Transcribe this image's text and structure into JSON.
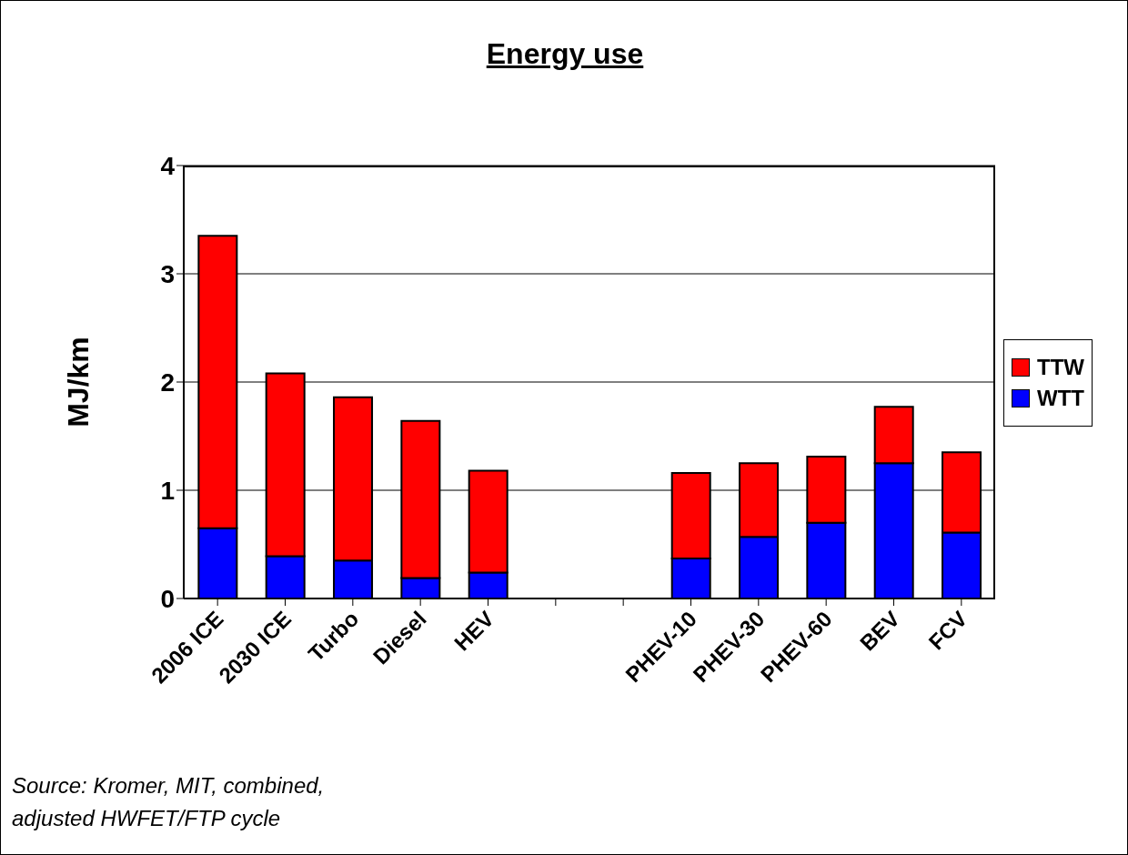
{
  "chart_data": {
    "type": "bar",
    "title": "Energy use",
    "ylabel": "MJ/km",
    "categories": [
      "2006 ICE",
      "2030 ICE",
      "Turbo",
      "Diesel",
      "HEV",
      null,
      null,
      "PHEV-10",
      "PHEV-30",
      "PHEV-60",
      "BEV",
      "FCV"
    ],
    "series": [
      {
        "name": "WTT",
        "color": "#0000ff",
        "values": [
          0.65,
          0.39,
          0.35,
          0.19,
          0.24,
          null,
          null,
          0.37,
          0.57,
          0.7,
          1.25,
          0.61
        ]
      },
      {
        "name": "TTW",
        "color": "#ff0000",
        "values": [
          2.7,
          1.69,
          1.51,
          1.45,
          0.94,
          null,
          null,
          0.79,
          0.68,
          0.61,
          0.52,
          0.74
        ]
      }
    ],
    "stacked": true,
    "ylim": [
      0,
      4
    ],
    "yticks": [
      0,
      1,
      2,
      3,
      4
    ],
    "grid": "y",
    "legend": "right",
    "annotations": [
      "Source: Kromer, MIT, combined, adjusted HWFET/FTP cycle"
    ]
  }
}
